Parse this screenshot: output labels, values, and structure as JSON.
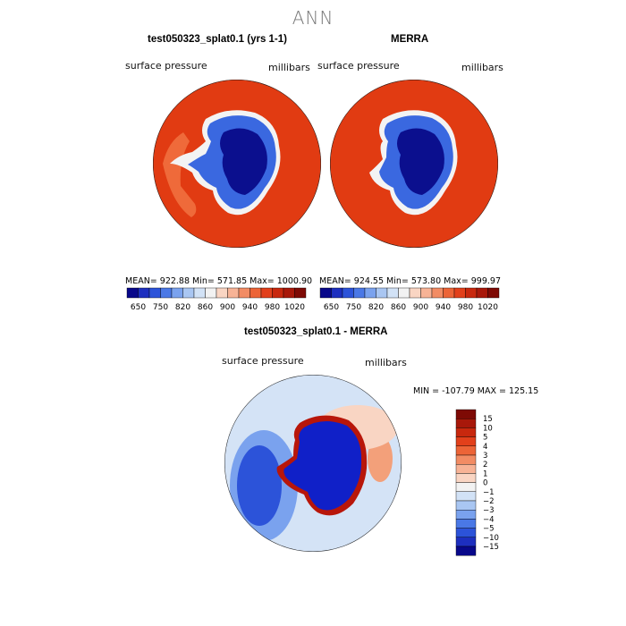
{
  "page_title": "ANN",
  "panel_left": {
    "title": "test050323_splat0.1 (yrs 1-1)",
    "variable": "surface pressure",
    "units": "millibars",
    "stats": "MEAN= 922.88  Min= 571.85  Max= 1000.90"
  },
  "panel_right": {
    "title": "MERRA",
    "variable": "surface pressure",
    "units": "millibars",
    "stats": "MEAN= 924.55  Min= 573.80  Max= 999.97"
  },
  "colorbar_top": {
    "labels": [
      "650",
      "750",
      "820",
      "860",
      "900",
      "940",
      "980",
      "1020"
    ],
    "colors": [
      "#08088a",
      "#1d2fbf",
      "#2c53d9",
      "#4a78e6",
      "#7aa2ee",
      "#a9c6f2",
      "#d2e2f6",
      "#f2f2f2",
      "#f9d5c3",
      "#f7b396",
      "#f28c64",
      "#ec6437",
      "#e2401b",
      "#c8280e",
      "#a8180a",
      "#7e0a05"
    ]
  },
  "panel_diff": {
    "title": "test050323_splat0.1 - MERRA",
    "variable": "surface pressure",
    "units": "millibars",
    "stats": "MIN = -107.79  MAX = 125.15"
  },
  "colorbar_diff": {
    "labels": [
      "15",
      "10",
      "5",
      "4",
      "3",
      "2",
      "1",
      "0",
      "−1",
      "−2",
      "−3",
      "−4",
      "−5",
      "−10",
      "−15"
    ],
    "colors": [
      "#7e0a05",
      "#a8180a",
      "#c8280e",
      "#e2401b",
      "#ec6437",
      "#f28c64",
      "#f7b396",
      "#f9d5c3",
      "#f2f2f2",
      "#d2e2f6",
      "#a9c6f2",
      "#7aa2ee",
      "#4a78e6",
      "#2c53d9",
      "#1d2fbf",
      "#08088a"
    ]
  }
}
